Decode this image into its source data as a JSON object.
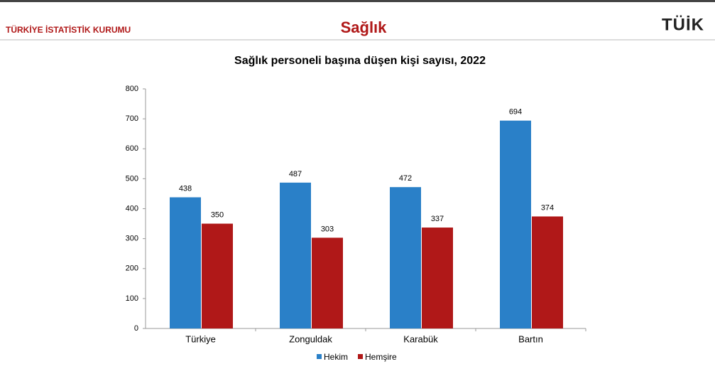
{
  "header": {
    "institution": "TÜRKİYE İSTATİSTİK KURUMU",
    "title": "Sağlık",
    "logo": "TÜİK"
  },
  "chart_data": {
    "type": "bar",
    "title": "Sağlık personeli başına düşen kişi sayısı, 2022",
    "categories": [
      "Türkiye",
      "Zonguldak",
      "Karabük",
      "Bartın"
    ],
    "series": [
      {
        "name": "Hekim",
        "color": "#2a80c8",
        "values": [
          438,
          487,
          472,
          694
        ]
      },
      {
        "name": "Hemşire",
        "color": "#b01818",
        "values": [
          350,
          303,
          337,
          374
        ]
      }
    ],
    "ylim": [
      0,
      800
    ],
    "yticks": [
      0,
      100,
      200,
      300,
      400,
      500,
      600,
      700,
      800
    ],
    "grid": false,
    "legend": "bottom"
  }
}
